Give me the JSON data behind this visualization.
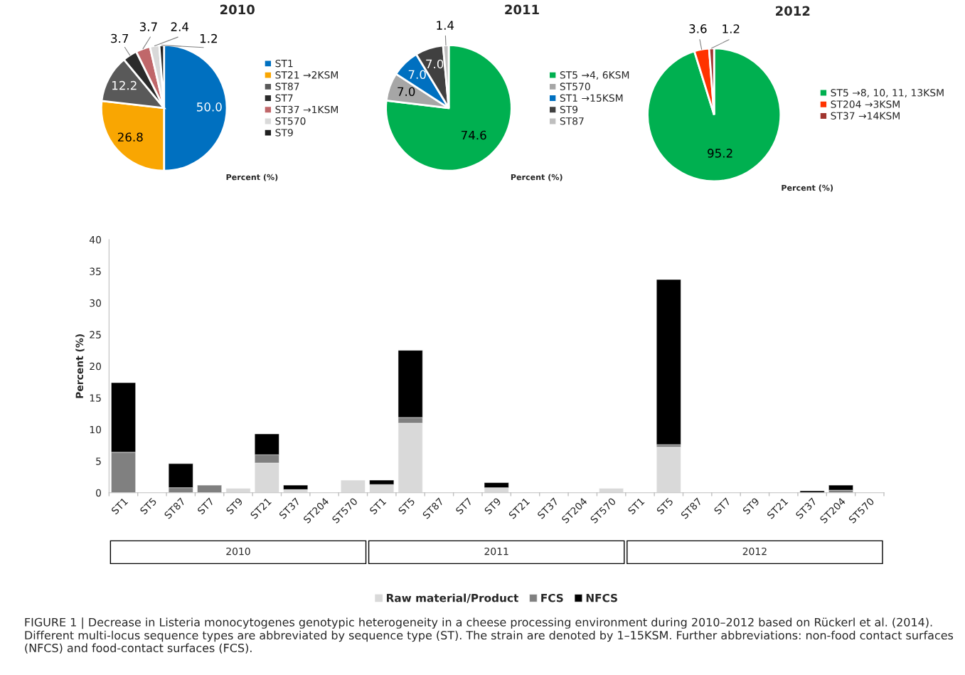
{
  "chart_data": [
    {
      "type": "pie",
      "title": "2010",
      "xlabel": "Percent (%)",
      "categories": [
        "ST1",
        "ST21 →2KSM",
        "ST87",
        "ST7",
        "ST37 →1KSM",
        "ST570",
        "ST9"
      ],
      "values": [
        50.0,
        26.8,
        12.2,
        3.7,
        3.7,
        2.4,
        1.2
      ],
      "colors": [
        "#0070c0",
        "#f9a602",
        "#595959",
        "#2b2b2b",
        "#c0676a",
        "#d9d9d9",
        "#1f1f1f"
      ],
      "value_labels": [
        "50.0",
        "26.8",
        "12.2",
        "3.7",
        "3.7",
        "2.4",
        "1.2"
      ],
      "legend": "right"
    },
    {
      "type": "pie",
      "title": "2011",
      "xlabel": "Percent (%)",
      "categories": [
        "ST5 →4, 6KSM",
        "ST570",
        "ST1 →15KSM",
        "ST9",
        "ST87"
      ],
      "values": [
        74.6,
        7.0,
        7.0,
        7.0,
        1.4
      ],
      "colors": [
        "#00b050",
        "#a6a6a6",
        "#0070c0",
        "#404040",
        "#bfbfbf"
      ],
      "value_labels": [
        "74.6",
        "7.0",
        "7.0",
        "7.0",
        "1.4"
      ],
      "legend": "right"
    },
    {
      "type": "pie",
      "title": "2012",
      "xlabel": "Percent (%)",
      "categories": [
        "ST5 →8, 10, 11, 13KSM",
        "ST204 →3KSM",
        "ST37 →14KSM"
      ],
      "values": [
        95.2,
        3.6,
        1.2
      ],
      "colors": [
        "#00b050",
        "#ff3300",
        "#a0352f"
      ],
      "value_labels": [
        "95.2",
        "3.6",
        "1.2"
      ],
      "legend": "right"
    },
    {
      "type": "bar",
      "stacked": true,
      "ylabel": "Percent (%)",
      "ylim": [
        0,
        40
      ],
      "yticks": [
        0,
        5,
        10,
        15,
        20,
        25,
        30,
        35,
        40
      ],
      "grid": false,
      "legend": "bottom",
      "categories": [
        "ST1",
        "ST5",
        "ST87",
        "ST7",
        "ST9",
        "ST21",
        "ST37",
        "ST204",
        "ST570",
        "ST1",
        "ST5",
        "ST87",
        "ST7",
        "ST9",
        "ST21",
        "ST37",
        "ST204",
        "ST570",
        "ST1",
        "ST5",
        "ST87",
        "ST7",
        "ST9",
        "ST21",
        "ST37",
        "ST204",
        "ST570"
      ],
      "series": [
        {
          "name": "Raw material/Product",
          "color": "#d9d9d9",
          "values": [
            0,
            0,
            0,
            0,
            0.7,
            4.7,
            0.5,
            0,
            2.0,
            1.3,
            11.0,
            0,
            0,
            0.8,
            0,
            0,
            0,
            0.7,
            0,
            7.2,
            0,
            0,
            0,
            0,
            0,
            0,
            0
          ]
        },
        {
          "name": "FCS",
          "color": "#808080",
          "values": [
            6.4,
            0,
            0.8,
            1.2,
            0,
            1.3,
            0,
            0,
            0,
            0,
            0.9,
            0,
            0,
            0,
            0,
            0,
            0,
            0,
            0,
            0.4,
            0,
            0,
            0,
            0,
            0,
            0.4,
            0
          ]
        },
        {
          "name": "NFCS",
          "color": "#000000",
          "values": [
            11.0,
            0,
            3.8,
            0,
            0,
            3.3,
            0.7,
            0,
            0,
            0.7,
            10.6,
            0,
            0,
            0.8,
            0,
            0,
            0,
            0,
            0,
            26.1,
            0,
            0,
            0,
            0,
            0.3,
            0.8,
            0
          ]
        }
      ],
      "annotations": [
        "2010",
        "2011",
        "2012",
        "FIGURE 1 | Decrease in Listeria monocytogenes genotypic heterogeneity in a cheese processing environment during 2010–2012 based on Rückerl et al. (2014). Different multi-locus sequence types are abbreviated by sequence type (ST). The strain are denoted by 1–15KSM. Further abbreviations: non-food contact surfaces (NFCS) and food-contact surfaces (FCS)."
      ]
    }
  ]
}
